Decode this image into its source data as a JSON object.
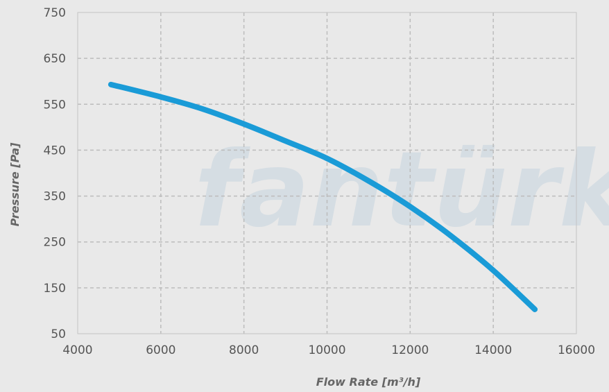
{
  "chart_data": {
    "type": "line",
    "title": "",
    "xlabel": "Flow Rate [m³/h]",
    "ylabel": "Pressure [Pa]",
    "xlim": [
      4000,
      16000
    ],
    "ylim": [
      50,
      750
    ],
    "xticks": [
      "4000",
      "6000",
      "8000",
      "10000",
      "12000",
      "14000",
      "16000"
    ],
    "yticks": [
      "50",
      "150",
      "250",
      "350",
      "450",
      "550",
      "650",
      "750"
    ],
    "grid": true,
    "legend": "none",
    "watermark": "fantürk",
    "series": [
      {
        "color": "#1a9bd7",
        "x": [
          4800,
          6000,
          7000,
          8000,
          9000,
          10000,
          11000,
          12000,
          13000,
          14000,
          15000
        ],
        "y": [
          593,
          566,
          540,
          507,
          470,
          432,
          383,
          327,
          262,
          188,
          103
        ]
      }
    ]
  }
}
